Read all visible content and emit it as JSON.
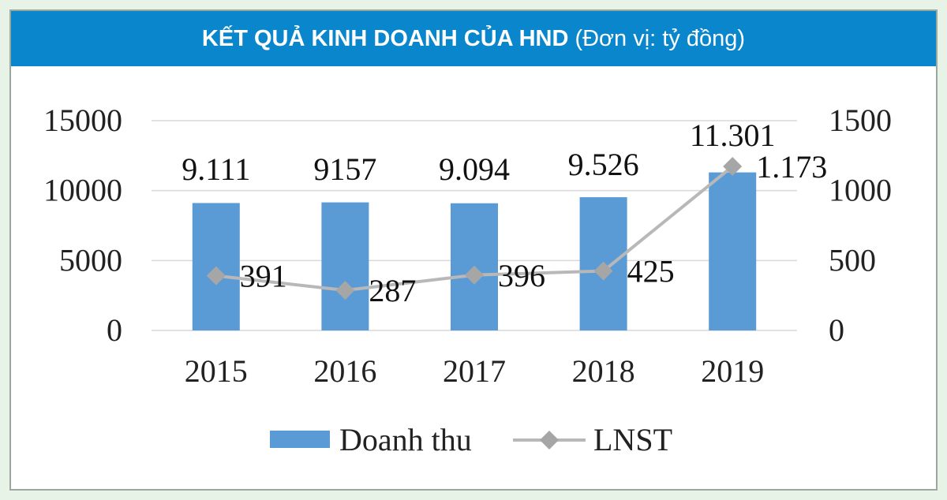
{
  "header": {
    "title": "KẾT QUẢ KINH DOANH CỦA HND",
    "unit": "(Đơn vị: tỷ đồng)"
  },
  "colors": {
    "header_bg": "#0a87cc",
    "bar": "#5b9bd5",
    "line": "#b8b8b8",
    "marker": "#a6a6a6"
  },
  "chart_data": {
    "type": "bar",
    "title": "KẾT QUẢ KINH DOANH CỦA HND (Đơn vị: tỷ đồng)",
    "categories": [
      "2015",
      "2016",
      "2017",
      "2018",
      "2019"
    ],
    "series": [
      {
        "name": "Doanh thu",
        "type": "bar",
        "axis": "left",
        "values": [
          9111,
          9157,
          9094,
          9526,
          11301
        ],
        "labels": [
          "9.111",
          "9157",
          "9.094",
          "9.526",
          "11.301"
        ]
      },
      {
        "name": "LNST",
        "type": "line",
        "axis": "right",
        "values": [
          391,
          287,
          396,
          425,
          1173
        ],
        "labels": [
          "391",
          "287",
          "396",
          "425",
          "1.173"
        ]
      }
    ],
    "y_left": {
      "ylim": [
        0,
        15000
      ],
      "ticks": [
        "0",
        "5000",
        "10000",
        "15000"
      ]
    },
    "y_right": {
      "ylim": [
        0,
        1500
      ],
      "ticks": [
        "0",
        "500",
        "1000",
        "1500"
      ]
    },
    "grid": true,
    "legend": "bottom"
  }
}
